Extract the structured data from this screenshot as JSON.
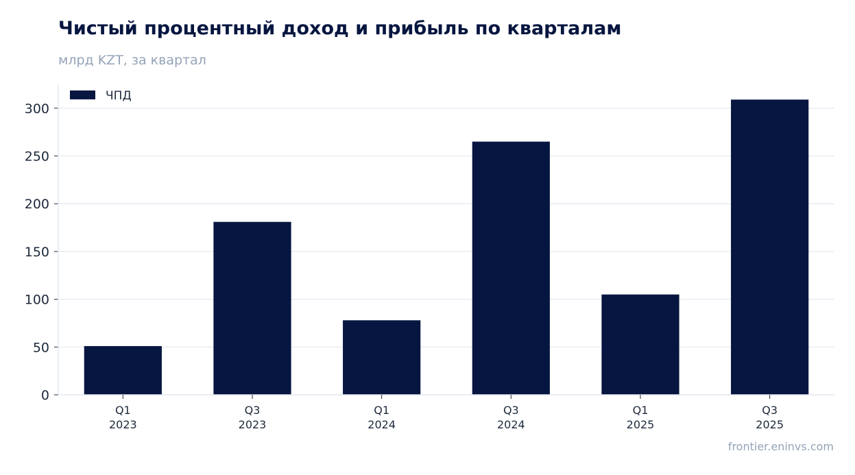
{
  "chart_data": {
    "type": "bar",
    "title": "Чистый процентный доход и прибыль по кварталам",
    "subtitle": "млрд KZT, за квартал",
    "source": "frontier.eninvs.com",
    "categories": [
      {
        "quarter": "Q1",
        "year": "2023"
      },
      {
        "quarter": "Q3",
        "year": "2023"
      },
      {
        "quarter": "Q1",
        "year": "2024"
      },
      {
        "quarter": "Q3",
        "year": "2024"
      },
      {
        "quarter": "Q1",
        "year": "2025"
      },
      {
        "quarter": "Q3",
        "year": "2025"
      }
    ],
    "series": [
      {
        "name": "ЧПД",
        "color": "#061640",
        "values": [
          51,
          181,
          78,
          265,
          105,
          309
        ]
      }
    ],
    "ylim": [
      0,
      325
    ],
    "yticks": [
      0,
      50,
      100,
      150,
      200,
      250,
      300
    ],
    "grid": true,
    "legend": "top-left"
  }
}
